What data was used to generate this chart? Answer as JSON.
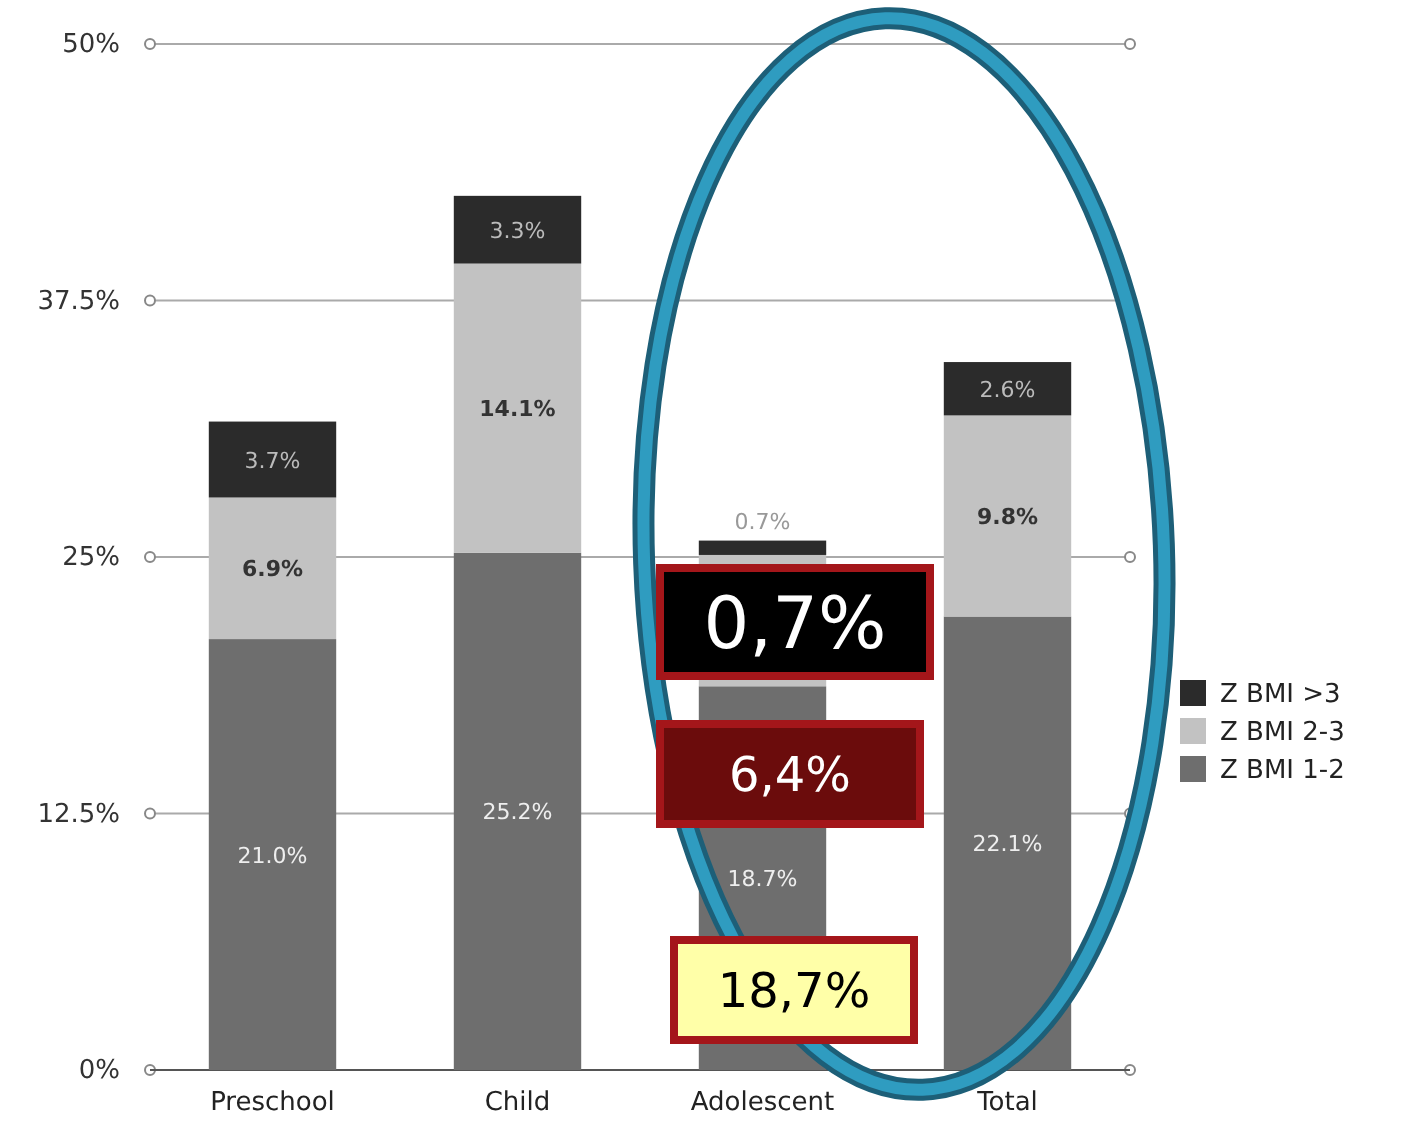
{
  "chart_data": {
    "type": "bar",
    "stacked": true,
    "categories": [
      "Preschool",
      "Child",
      "Adolescent",
      "Total"
    ],
    "series": [
      {
        "name": "Z BMI 1-2",
        "color": "#6e6e6e",
        "values": [
          21.0,
          25.2,
          18.7,
          22.1
        ],
        "value_labels": [
          "21.0%",
          "25.2%",
          "18.7%",
          "22.1%"
        ]
      },
      {
        "name": "Z BMI 2-3",
        "color": "#c2c2c2",
        "values": [
          6.9,
          14.1,
          6.4,
          9.8
        ],
        "value_labels": [
          "6.9%",
          "14.1%",
          null,
          "9.8%"
        ]
      },
      {
        "name": "Z BMI >3",
        "color": "#2b2b2b",
        "values": [
          3.7,
          3.3,
          0.7,
          2.6
        ],
        "value_labels": [
          "3.7%",
          "3.3%",
          "0.7%",
          "2.6%"
        ]
      }
    ],
    "ylim": [
      0,
      50
    ],
    "yticks": [
      {
        "value": 0,
        "label": "0%"
      },
      {
        "value": 12.5,
        "label": "12.5%"
      },
      {
        "value": 25,
        "label": "25%"
      },
      {
        "value": 37.5,
        "label": "37.5%"
      },
      {
        "value": 50,
        "label": "50%"
      }
    ],
    "grid": "y",
    "legend": "right",
    "annotations": [
      "0,7%",
      "6,4%",
      "18,7%"
    ]
  }
}
